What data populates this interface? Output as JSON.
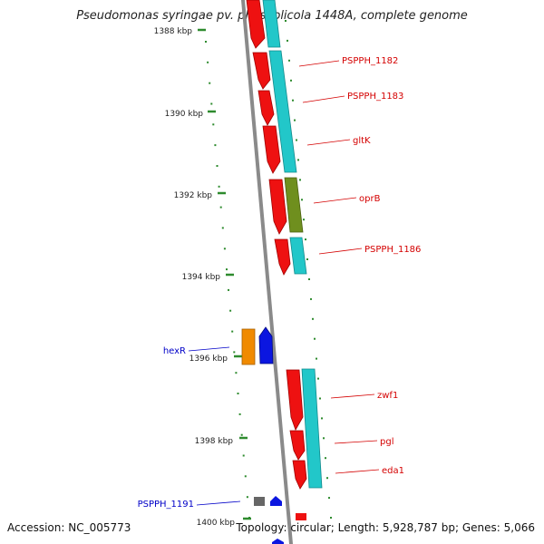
{
  "header": {
    "title": "Pseudomonas syringae pv. phaseolicola 1448A, complete genome"
  },
  "footer": {
    "accession": "Accession: NC_005773",
    "topology": "Topology: circular",
    "length": "Length: 5,928,787 bp",
    "genes": "Genes: 5,066"
  },
  "colors": {
    "backbone": "#8a8a8a",
    "tick": "#2e8b2e",
    "forward_label": "#d40000",
    "reverse_label": "#0000c8",
    "cds_red": "#ee1111",
    "cds_cyan": "#22c7c9",
    "cds_olive": "#6f8f1e",
    "cds_orange": "#f08a00",
    "cds_blue": "#0b16e0",
    "cds_gray": "#666666"
  },
  "ruler": [
    {
      "label": "1388 kbp"
    },
    {
      "label": "1390 kbp"
    },
    {
      "label": "1392 kbp"
    },
    {
      "label": "1394 kbp"
    },
    {
      "label": "1396 kbp"
    },
    {
      "label": "1398 kbp"
    },
    {
      "label": "1400 kbp"
    }
  ],
  "gene_labels": [
    {
      "name": "PSPPH_1182",
      "strand": "forward"
    },
    {
      "name": "PSPPH_1183",
      "strand": "forward"
    },
    {
      "name": "gltK",
      "strand": "forward"
    },
    {
      "name": "oprB",
      "strand": "forward"
    },
    {
      "name": "PSPPH_1186",
      "strand": "forward"
    },
    {
      "name": "hexR",
      "strand": "reverse"
    },
    {
      "name": "zwf1",
      "strand": "forward"
    },
    {
      "name": "pgl",
      "strand": "forward"
    },
    {
      "name": "eda1",
      "strand": "forward"
    },
    {
      "name": "PSPPH_1191",
      "strand": "reverse"
    }
  ]
}
